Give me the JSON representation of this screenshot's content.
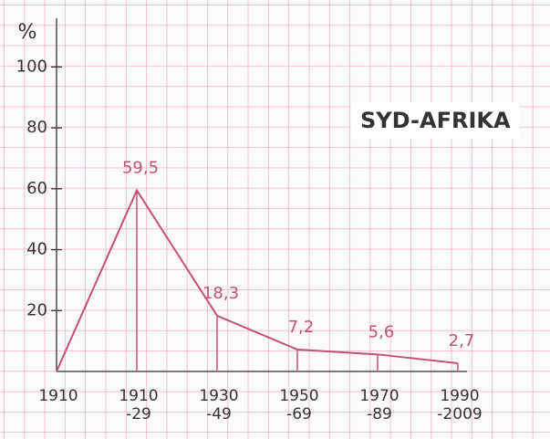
{
  "chart_data": {
    "type": "line",
    "title": "SYD-AFRIKA",
    "y_label": "%",
    "categories": [
      "1910",
      "1910\n-29",
      "1930\n-49",
      "1950\n-69",
      "1970\n-89",
      "1990\n-2009"
    ],
    "values": [
      0,
      59.5,
      18.3,
      7.2,
      5.6,
      2.7
    ],
    "value_labels": [
      null,
      "59,5",
      "18,3",
      "7,2",
      "5,6",
      "2,7"
    ],
    "color": "#c4507a",
    "ylim": [
      0,
      116
    ],
    "yticks": [
      20,
      40,
      60,
      80,
      100
    ]
  }
}
